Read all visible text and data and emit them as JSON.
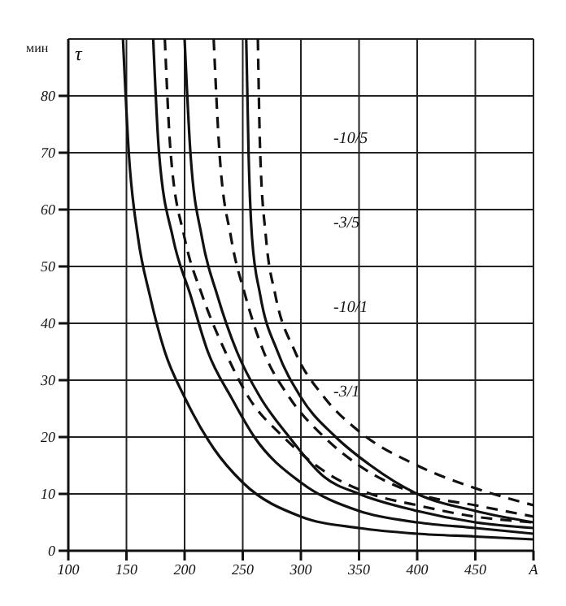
{
  "chart_data": {
    "type": "line",
    "ylabel": "мин",
    "xlim": [
      100,
      500
    ],
    "ylim": [
      0,
      90
    ],
    "xticks": [
      100,
      150,
      200,
      250,
      300,
      350,
      400,
      450,
      {
        "value": 500,
        "label": "A"
      }
    ],
    "yticks": [
      0,
      10,
      20,
      30,
      40,
      50,
      60,
      70,
      80
    ],
    "grid": true,
    "marker": "none",
    "annotations": [
      "τ",
      "-10/5",
      "-3/5",
      "-10/1",
      "-3/1"
    ],
    "series": [
      {
        "color": "#111111",
        "line_style": "solid",
        "x": [
          147,
          152,
          160,
          170,
          183,
          200,
          225,
          250,
          300,
          350,
          400,
          450,
          500
        ],
        "values": [
          90,
          70,
          55,
          45,
          35,
          27,
          18,
          12,
          6,
          4,
          3,
          2.5,
          2
        ]
      },
      {
        "color": "#111111",
        "line_style": "solid",
        "x": [
          173,
          178,
          190,
          205,
          220,
          240,
          260,
          300,
          350,
          400,
          450,
          500
        ],
        "values": [
          90,
          70,
          55,
          45,
          35,
          27,
          20,
          12,
          7,
          5,
          4,
          3
        ]
      },
      {
        "color": "#111111",
        "line_style": "solid",
        "x": [
          200,
          205,
          215,
          228,
          245,
          265,
          290,
          320,
          350,
          400,
          450,
          500
        ],
        "values": [
          90,
          70,
          55,
          45,
          35,
          27,
          20,
          13,
          10,
          7,
          5,
          4
        ]
      },
      {
        "color": "#111111",
        "line_style": "solid",
        "x": [
          253,
          255,
          258,
          265,
          280,
          300,
          330,
          360,
          400,
          450,
          500
        ],
        "values": [
          90,
          70,
          55,
          45,
          35,
          27,
          20,
          15,
          10,
          7,
          5
        ]
      },
      {
        "color": "#111111",
        "line_style": "dashed",
        "x": [
          183,
          188,
          200,
          215,
          235,
          255,
          285,
          320,
          360,
          400,
          450,
          500
        ],
        "values": [
          90,
          70,
          55,
          45,
          35,
          27,
          20,
          14,
          10,
          8,
          6,
          5
        ]
      },
      {
        "color": "#111111",
        "line_style": "dashed",
        "x": [
          225,
          230,
          240,
          252,
          268,
          290,
          320,
          350,
          400,
          450,
          500
        ],
        "values": [
          90,
          70,
          55,
          45,
          35,
          27,
          20,
          15,
          10,
          8,
          6
        ]
      },
      {
        "color": "#111111",
        "line_style": "dashed",
        "x": [
          263,
          265,
          270,
          278,
          295,
          320,
          350,
          400,
          450,
          500
        ],
        "values": [
          90,
          70,
          55,
          45,
          35,
          27,
          21,
          15,
          11,
          8
        ]
      }
    ]
  }
}
